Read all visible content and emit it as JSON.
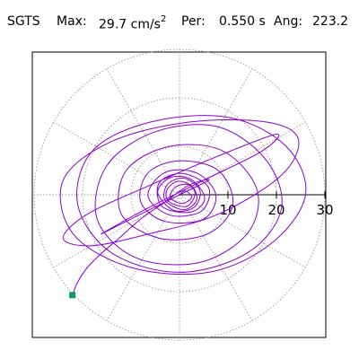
{
  "header": {
    "station": "SGTS",
    "max_label": "Max:",
    "max_value": "29.7",
    "max_unit": "cm/s",
    "max_unit_exp": "2",
    "per_label": "Per:",
    "per_value": "0.550 s",
    "ang_label": "Ang:",
    "ang_value": "223.2"
  },
  "chart_data": {
    "type": "polar-orbit",
    "radial_ticks": [
      10,
      20,
      30
    ],
    "r_max": 30,
    "spokes_deg": [
      30,
      60,
      90,
      120,
      150,
      180,
      210,
      240,
      270,
      300,
      330
    ],
    "grid": true,
    "trace_color": "#8a00d4",
    "end_marker_color": "#119966",
    "end_point": {
      "x": -22.1,
      "y": -20.7
    },
    "trace": [
      [
        0,
        0
      ],
      [
        1.2,
        0.8
      ],
      [
        2.5,
        -0.6
      ],
      [
        0.4,
        -1.8
      ],
      [
        -1.9,
        -0.5
      ],
      [
        -0.8,
        1.6
      ],
      [
        1.8,
        2.1
      ],
      [
        3.2,
        0.2
      ],
      [
        1.5,
        -2.4
      ],
      [
        -2.2,
        -1.4
      ],
      [
        -2.6,
        1.0
      ],
      [
        -0.2,
        2.8
      ],
      [
        2.7,
        1.6
      ],
      [
        3.5,
        -1.2
      ],
      [
        0.8,
        -3.1
      ],
      [
        -3.0,
        -1.1
      ],
      [
        -2.4,
        2.2
      ],
      [
        1.0,
        3.4
      ],
      [
        4.2,
        0.9
      ],
      [
        3.0,
        -2.6
      ],
      [
        -1.2,
        -3.2
      ],
      [
        -4.5,
        0.5
      ],
      [
        -1.8,
        3.6
      ],
      [
        2.5,
        3.1
      ],
      [
        5.2,
        -0.8
      ],
      [
        2.2,
        -3.6
      ],
      [
        -3.6,
        -2.4
      ],
      [
        -4.2,
        2.4
      ],
      [
        0.6,
        4.4
      ],
      [
        6.0,
        1.5
      ],
      [
        4.5,
        -3.4
      ],
      [
        -2.0,
        -4.2
      ],
      [
        -6.5,
        -0.2
      ],
      [
        -3.0,
        4.6
      ],
      [
        3.5,
        4.5
      ],
      [
        7.5,
        0.0
      ],
      [
        5.0,
        -5.0
      ],
      [
        -3.0,
        -5.5
      ],
      [
        -8.0,
        -1.5
      ],
      [
        -6.5,
        4.5
      ],
      [
        0.0,
        7.0
      ],
      [
        8.0,
        5.0
      ],
      [
        11.0,
        -2.0
      ],
      [
        6.0,
        -8.0
      ],
      [
        -4.0,
        -9.0
      ],
      [
        -12.0,
        -4.0
      ],
      [
        -11.0,
        5.0
      ],
      [
        -2.0,
        10.0
      ],
      [
        9.0,
        9.0
      ],
      [
        16.0,
        1.0
      ],
      [
        14.0,
        -8.0
      ],
      [
        4.0,
        -14.0
      ],
      [
        -9.0,
        -13.0
      ],
      [
        -17.0,
        -5.0
      ],
      [
        -15.0,
        6.0
      ],
      [
        -5.0,
        13.0
      ],
      [
        8.0,
        14.0
      ],
      [
        18.0,
        7.0
      ],
      [
        21.0,
        -3.0
      ],
      [
        14.0,
        -12.0
      ],
      [
        0.0,
        -16.0
      ],
      [
        -14.0,
        -12.0
      ],
      [
        -21.0,
        -2.0
      ],
      [
        -18.0,
        9.0
      ],
      [
        -6.0,
        15.0
      ],
      [
        10.0,
        16.0
      ],
      [
        22.0,
        10.0
      ],
      [
        26.0,
        0.0
      ],
      [
        19.0,
        -10.0
      ],
      [
        6.0,
        -16.0
      ],
      [
        -10.0,
        -15.0
      ],
      [
        -22.0,
        -8.0
      ],
      [
        -24.0,
        3.0
      ],
      [
        -14.0,
        11.0
      ],
      [
        2.0,
        15.0
      ],
      [
        18.0,
        15.0
      ],
      [
        24.5,
        11.5
      ],
      [
        21.0,
        4.0
      ],
      [
        8.0,
        -4.0
      ],
      [
        -6.0,
        -8.0
      ],
      [
        -18.0,
        -10.5
      ],
      [
        -24.0,
        -9.0
      ],
      [
        -19.0,
        -4.0
      ],
      [
        -6.0,
        2.0
      ],
      [
        8.0,
        8.0
      ],
      [
        20.0,
        12.5
      ],
      [
        17.0,
        9.0
      ],
      [
        5.0,
        3.0
      ],
      [
        -7.0,
        -3.0
      ],
      [
        -16.0,
        -8.0
      ],
      [
        -12.0,
        -6.0
      ],
      [
        -2.0,
        -1.0
      ],
      [
        6.0,
        3.0
      ],
      [
        2.0,
        2.0
      ],
      [
        -3.0,
        -1.5
      ],
      [
        -8.0,
        -5.0
      ],
      [
        -12.5,
        -9.0
      ],
      [
        -16.0,
        -12.0
      ],
      [
        -19.0,
        -15.0
      ],
      [
        -21.0,
        -18.0
      ],
      [
        -22.1,
        -20.7
      ]
    ]
  }
}
